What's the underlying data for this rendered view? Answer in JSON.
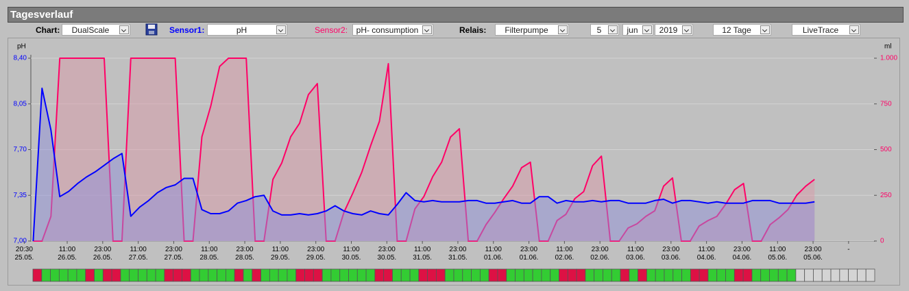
{
  "header": {
    "title": "Tagesverlauf"
  },
  "controls": {
    "chart": {
      "label": "Chart:",
      "value": "DualScale"
    },
    "sensor1": {
      "label": "Sensor1:",
      "value": "pH"
    },
    "sensor2": {
      "label": "Sensor2:",
      "value": "pH- consumption"
    },
    "relais": {
      "label": "Relais:",
      "value": "Filterpumpe"
    },
    "day": "5",
    "month": "jun",
    "year": "2019",
    "range": "12 Tage",
    "mode": "LiveTrace"
  },
  "chart_data": {
    "type": "line",
    "ylabel": "pH",
    "y2label": "ml",
    "x": [
      3,
      6,
      9,
      12,
      15,
      18,
      21,
      24,
      27,
      30,
      33,
      36,
      39,
      42,
      45,
      48,
      51,
      54,
      57,
      60,
      63,
      66,
      69,
      72,
      75,
      78,
      81,
      84,
      87,
      90,
      93,
      96,
      99,
      102,
      105,
      108,
      111,
      114,
      117,
      120,
      123,
      126,
      129,
      132,
      135,
      138,
      141,
      144,
      147,
      150,
      153,
      156,
      159,
      162,
      165,
      168,
      171,
      174,
      177,
      180,
      183,
      186,
      189,
      192,
      195,
      198,
      201,
      204,
      207,
      210,
      213,
      216,
      219,
      222,
      225,
      228,
      231,
      234,
      237,
      240,
      243,
      246,
      249,
      252,
      255,
      258,
      261,
      264,
      267
    ],
    "series": [
      {
        "color": "#0000ff",
        "fill": "#8f8fd8",
        "axis": "y",
        "values": [
          7.0,
          8.17,
          7.85,
          7.34,
          7.38,
          7.44,
          7.49,
          7.53,
          7.58,
          7.63,
          7.67,
          7.19,
          7.26,
          7.31,
          7.37,
          7.41,
          7.43,
          7.48,
          7.48,
          7.24,
          7.21,
          7.21,
          7.23,
          7.29,
          7.31,
          7.34,
          7.35,
          7.23,
          7.2,
          7.2,
          7.21,
          7.2,
          7.21,
          7.23,
          7.27,
          7.23,
          7.21,
          7.2,
          7.23,
          7.21,
          7.2,
          7.28,
          7.37,
          7.31,
          7.3,
          7.31,
          7.3,
          7.3,
          7.3,
          7.31,
          7.31,
          7.29,
          7.29,
          7.3,
          7.31,
          7.29,
          7.29,
          7.34,
          7.34,
          7.29,
          7.31,
          7.3,
          7.3,
          7.31,
          7.3,
          7.31,
          7.31,
          7.29,
          7.29,
          7.29,
          7.31,
          7.32,
          7.29,
          7.31,
          7.31,
          7.3,
          7.29,
          7.3,
          7.29,
          7.29,
          7.29,
          7.31,
          7.31,
          7.31,
          7.29,
          7.29,
          7.29,
          7.29,
          7.3
        ]
      },
      {
        "color": "#ff0066",
        "fill": "#d89aa8",
        "axis": "y2",
        "values": [
          0,
          0,
          135,
          1000,
          1000,
          1000,
          1000,
          1000,
          1000,
          0,
          0,
          1000,
          1000,
          1000,
          1000,
          1000,
          1000,
          0,
          0,
          570,
          738,
          955,
          1000,
          1000,
          1000,
          0,
          0,
          337,
          427,
          570,
          644,
          801,
          861,
          0,
          0,
          157,
          262,
          375,
          521,
          655,
          970,
          0,
          0,
          176,
          243,
          352,
          431,
          569,
          614,
          0,
          0,
          90,
          157,
          232,
          300,
          401,
          431,
          0,
          0,
          112,
          146,
          232,
          270,
          412,
          464,
          0,
          0,
          71,
          94,
          135,
          165,
          300,
          345,
          0,
          0,
          82,
          112,
          135,
          202,
          281,
          315,
          0,
          0,
          90,
          127,
          172,
          251,
          300,
          337
        ]
      }
    ],
    "xlim": [
      2.22,
      287.1
    ],
    "xticks": [
      {
        "value": 0,
        "label": "20:30\n25.05."
      },
      {
        "value": 14.5,
        "label": "11:00\n26.05."
      },
      {
        "value": 26.5,
        "label": "23:00\n26.05."
      },
      {
        "value": 38.5,
        "label": "11:00\n27.05."
      },
      {
        "value": 50.5,
        "label": "23:00\n27.05."
      },
      {
        "value": 62.5,
        "label": "11:00\n28.05."
      },
      {
        "value": 74.5,
        "label": "23:00\n28.05."
      },
      {
        "value": 86.5,
        "label": "11:00\n29.05."
      },
      {
        "value": 98.5,
        "label": "23:00\n29.05."
      },
      {
        "value": 110.5,
        "label": "11:00\n30.05."
      },
      {
        "value": 122.5,
        "label": "23:00\n30.05."
      },
      {
        "value": 134.5,
        "label": "11:00\n31.05."
      },
      {
        "value": 146.5,
        "label": "23:00\n31.05."
      },
      {
        "value": 158.5,
        "label": "11:00\n01.06."
      },
      {
        "value": 170.5,
        "label": "23:00\n01.06."
      },
      {
        "value": 182.5,
        "label": "11:00\n02.06."
      },
      {
        "value": 194.5,
        "label": "23:00\n02.06."
      },
      {
        "value": 206.5,
        "label": "11:00\n03.06."
      },
      {
        "value": 218.5,
        "label": "23:00\n03.06."
      },
      {
        "value": 230.5,
        "label": "11:00\n04.06."
      },
      {
        "value": 242.5,
        "label": "23:00\n04.06."
      },
      {
        "value": 254.5,
        "label": "11:00\n05.06."
      },
      {
        "value": 266.5,
        "label": "23:00\n05.06."
      },
      {
        "value": 278.5,
        "label": "-"
      }
    ],
    "ylim": [
      7.0,
      8.4
    ],
    "yticks": [
      {
        "value": 7.0,
        "label": "7,00"
      },
      {
        "value": 7.35,
        "label": "7,35"
      },
      {
        "value": 7.7,
        "label": "7,70"
      },
      {
        "value": 8.05,
        "label": "8,05"
      },
      {
        "value": 8.4,
        "label": "8,40"
      }
    ],
    "y2lim": [
      0,
      1000
    ],
    "y2ticks": [
      0,
      250,
      500,
      750,
      {
        "value": 1000,
        "label": "1.000"
      }
    ],
    "grid": true,
    "relay_colors": [
      "#dd1144",
      "#33cc33",
      "#33cc33",
      "#33cc33",
      "#33cc33",
      "#33cc33",
      "#dd1144",
      "#33cc33",
      "#dd1144",
      "#dd1144",
      "#33cc33",
      "#33cc33",
      "#33cc33",
      "#33cc33",
      "#33cc33",
      "#dd1144",
      "#dd1144",
      "#dd1144",
      "#33cc33",
      "#33cc33",
      "#33cc33",
      "#33cc33",
      "#33cc33",
      "#dd1144",
      "#33cc33",
      "#dd1144",
      "#33cc33",
      "#33cc33",
      "#33cc33",
      "#33cc33",
      "#dd1144",
      "#dd1144",
      "#dd1144",
      "#33cc33",
      "#33cc33",
      "#33cc33",
      "#33cc33",
      "#33cc33",
      "#33cc33",
      "#dd1144",
      "#dd1144",
      "#33cc33",
      "#33cc33",
      "#33cc33",
      "#dd1144",
      "#dd1144",
      "#dd1144",
      "#33cc33",
      "#33cc33",
      "#33cc33",
      "#33cc33",
      "#33cc33",
      "#dd1144",
      "#dd1144",
      "#33cc33",
      "#33cc33",
      "#33cc33",
      "#33cc33",
      "#33cc33",
      "#33cc33",
      "#dd1144",
      "#dd1144",
      "#dd1144",
      "#33cc33",
      "#33cc33",
      "#33cc33",
      "#33cc33",
      "#dd1144",
      "#33cc33",
      "#dd1144",
      "#33cc33",
      "#33cc33",
      "#33cc33",
      "#33cc33",
      "#33cc33",
      "#dd1144",
      "#dd1144",
      "#33cc33",
      "#33cc33",
      "#33cc33",
      "#dd1144",
      "#dd1144",
      "#33cc33",
      "#33cc33",
      "#33cc33",
      "#33cc33",
      "#33cc33",
      "#d4d4d4",
      "#d4d4d4",
      "#d4d4d4",
      "#d4d4d4",
      "#d4d4d4",
      "#d4d4d4",
      "#d4d4d4",
      "#d4d4d4",
      "#d4d4d4"
    ]
  }
}
